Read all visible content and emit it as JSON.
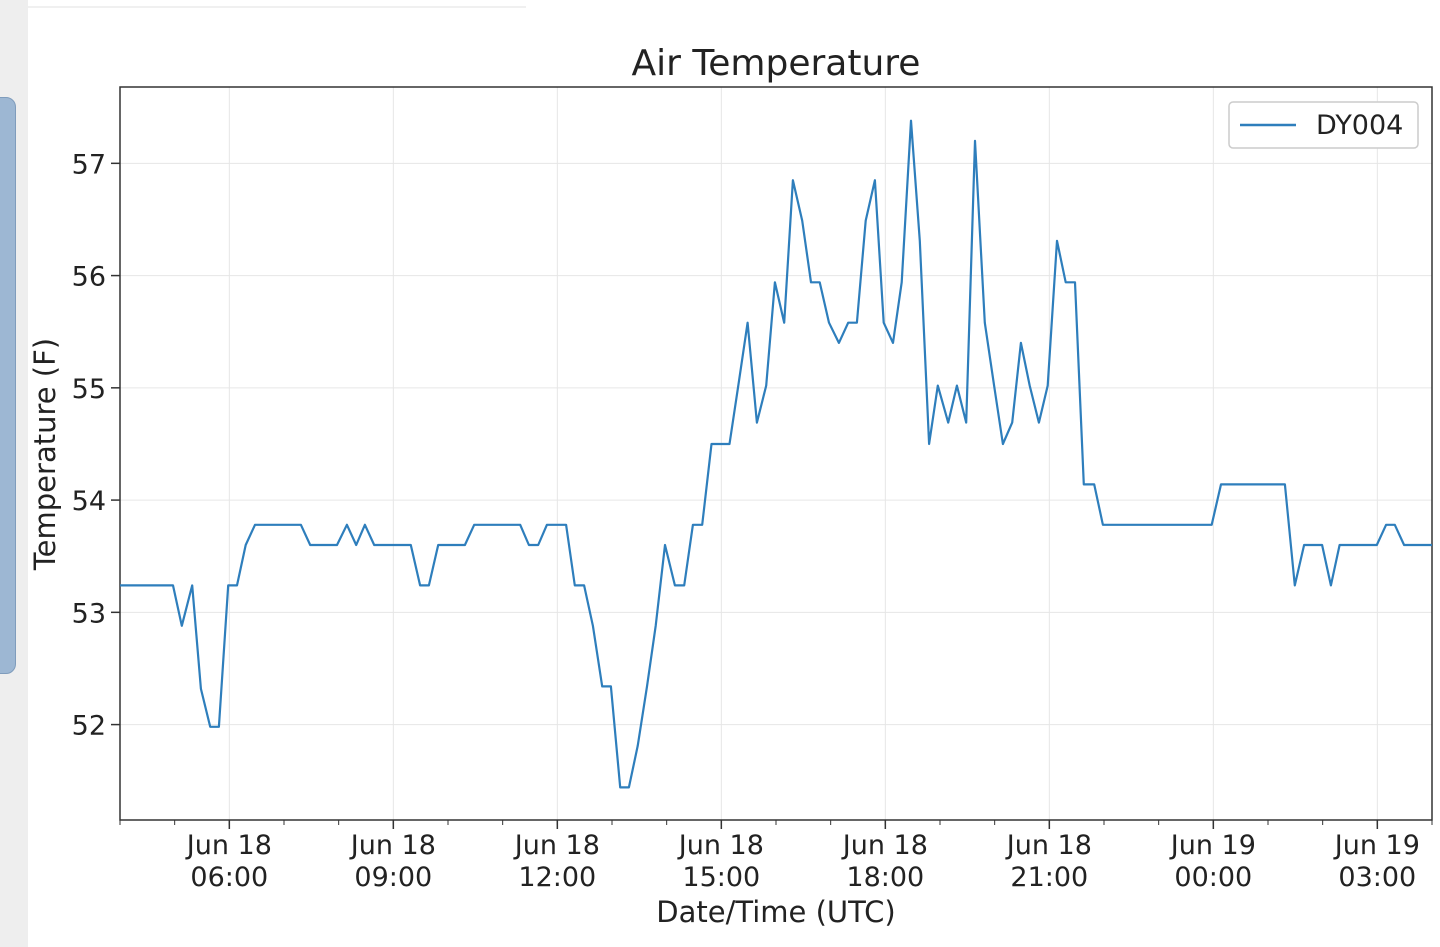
{
  "chart_data": {
    "type": "line",
    "title": "Air Temperature",
    "xlabel": "Date/Time (UTC)",
    "ylabel": "Temperature (F)",
    "x_unit": "hours since Jun 18 00:00 UTC",
    "xlim": [
      4,
      28
    ],
    "ylim": [
      51.15,
      57.68
    ],
    "grid": true,
    "legend": {
      "position": "top-right",
      "entries": [
        "DY004"
      ]
    },
    "x_ticks": [
      {
        "value": 6,
        "line1": "Jun 18",
        "line2": "06:00"
      },
      {
        "value": 9,
        "line1": "Jun 18",
        "line2": "09:00"
      },
      {
        "value": 12,
        "line1": "Jun 18",
        "line2": "12:00"
      },
      {
        "value": 15,
        "line1": "Jun 18",
        "line2": "15:00"
      },
      {
        "value": 18,
        "line1": "Jun 18",
        "line2": "18:00"
      },
      {
        "value": 21,
        "line1": "Jun 18",
        "line2": "21:00"
      },
      {
        "value": 24,
        "line1": "Jun 19",
        "line2": "00:00"
      },
      {
        "value": 27,
        "line1": "Jun 19",
        "line2": "03:00"
      }
    ],
    "y_ticks": [
      "52",
      "53",
      "54",
      "55",
      "56",
      "57"
    ],
    "series": [
      {
        "name": "DY004",
        "color": "#2e7ebc",
        "x": [
          4.0,
          4.97,
          5.13,
          5.32,
          5.48,
          5.65,
          5.81,
          5.98,
          6.14,
          6.3,
          6.47,
          7.31,
          7.48,
          7.97,
          8.15,
          8.32,
          8.48,
          8.65,
          9.32,
          9.49,
          9.65,
          9.82,
          10.31,
          10.48,
          11.32,
          11.48,
          11.65,
          11.81,
          12.16,
          12.32,
          12.49,
          12.65,
          12.82,
          12.98,
          13.15,
          13.31,
          13.47,
          13.64,
          13.8,
          13.97,
          14.15,
          14.32,
          14.48,
          14.65,
          14.82,
          15.15,
          15.31,
          15.48,
          15.65,
          15.82,
          15.98,
          16.15,
          16.31,
          16.48,
          16.64,
          16.8,
          16.97,
          17.15,
          17.32,
          17.48,
          17.64,
          17.81,
          17.97,
          18.14,
          18.3,
          18.47,
          18.63,
          18.8,
          18.96,
          19.15,
          19.31,
          19.48,
          19.64,
          19.82,
          19.99,
          20.15,
          20.32,
          20.48,
          20.64,
          20.81,
          20.97,
          21.14,
          21.3,
          21.47,
          21.63,
          21.82,
          21.98,
          23.97,
          24.14,
          25.31,
          25.49,
          25.66,
          25.99,
          26.15,
          26.31,
          26.99,
          27.16,
          27.32,
          27.49,
          28.0
        ],
        "values": [
          53.24,
          53.24,
          52.88,
          53.24,
          52.32,
          51.98,
          51.98,
          53.24,
          53.24,
          53.6,
          53.78,
          53.78,
          53.6,
          53.6,
          53.78,
          53.6,
          53.78,
          53.6,
          53.6,
          53.24,
          53.24,
          53.6,
          53.6,
          53.78,
          53.78,
          53.6,
          53.6,
          53.78,
          53.78,
          53.24,
          53.24,
          52.88,
          52.34,
          52.34,
          51.44,
          51.44,
          51.81,
          52.34,
          52.88,
          53.6,
          53.24,
          53.24,
          53.78,
          53.78,
          54.5,
          54.5,
          55.02,
          55.58,
          54.69,
          55.02,
          55.94,
          55.58,
          56.85,
          56.49,
          55.94,
          55.94,
          55.58,
          55.4,
          55.58,
          55.58,
          56.49,
          56.85,
          55.58,
          55.4,
          55.94,
          57.38,
          56.31,
          54.5,
          55.02,
          54.69,
          55.02,
          54.69,
          57.2,
          55.58,
          55.02,
          54.5,
          54.69,
          55.4,
          55.02,
          54.69,
          55.02,
          56.31,
          55.94,
          55.94,
          54.14,
          54.14,
          53.78,
          53.78,
          54.14,
          54.14,
          53.24,
          53.6,
          53.6,
          53.24,
          53.6,
          53.6,
          53.78,
          53.78,
          53.6,
          53.6
        ]
      }
    ]
  }
}
